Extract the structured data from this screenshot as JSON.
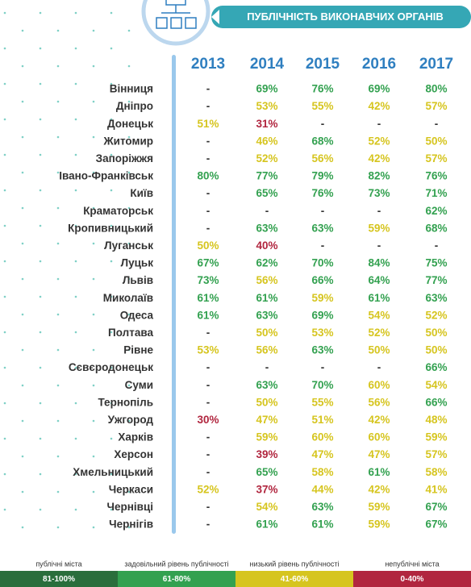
{
  "title": "ПУБЛІЧНІСТЬ ВИКОНАВЧИХ ОРГАНІВ",
  "table": {
    "headers": [
      "2013",
      "2014",
      "2015",
      "2016",
      "2017"
    ],
    "rows": [
      [
        "Вінниця",
        "-",
        "69%",
        "76%",
        "69%",
        "80%"
      ],
      [
        "Дніпро",
        "-",
        "53%",
        "55%",
        "42%",
        "57%"
      ],
      [
        "Донецьк",
        "51%",
        "31%",
        "-",
        "-",
        "-"
      ],
      [
        "Житомир",
        "-",
        "46%",
        "68%",
        "52%",
        "50%"
      ],
      [
        "Запоріжжя",
        "-",
        "52%",
        "56%",
        "42%",
        "57%"
      ],
      [
        "Івано-Франківськ",
        "80%",
        "77%",
        "79%",
        "82%",
        "76%"
      ],
      [
        "Київ",
        "-",
        "65%",
        "76%",
        "73%",
        "71%"
      ],
      [
        "Краматорськ",
        "-",
        "-",
        "-",
        "-",
        "62%"
      ],
      [
        "Кропивницький",
        "-",
        "63%",
        "63%",
        "59%",
        "68%"
      ],
      [
        "Луганськ",
        "50%",
        "40%",
        "-",
        "-",
        "-"
      ],
      [
        "Луцьк",
        "67%",
        "62%",
        "70%",
        "84%",
        "75%"
      ],
      [
        "Львів",
        "73%",
        "56%",
        "66%",
        "64%",
        "77%"
      ],
      [
        "Миколаїв",
        "61%",
        "61%",
        "59%",
        "61%",
        "63%"
      ],
      [
        "Одеса",
        "61%",
        "63%",
        "69%",
        "54%",
        "52%"
      ],
      [
        "Полтава",
        "-",
        "50%",
        "53%",
        "52%",
        "50%"
      ],
      [
        "Рівне",
        "53%",
        "56%",
        "63%",
        "50%",
        "50%"
      ],
      [
        "Сєвєродонецьк",
        "-",
        "-",
        "-",
        "-",
        "66%"
      ],
      [
        "Суми",
        "-",
        "63%",
        "70%",
        "60%",
        "54%"
      ],
      [
        "Тернопіль",
        "-",
        "50%",
        "55%",
        "56%",
        "66%"
      ],
      [
        "Ужгород",
        "30%",
        "47%",
        "51%",
        "42%",
        "48%"
      ],
      [
        "Харків",
        "-",
        "59%",
        "60%",
        "60%",
        "59%"
      ],
      [
        "Херсон",
        "-",
        "39%",
        "47%",
        "47%",
        "57%"
      ],
      [
        "Хмельницький",
        "-",
        "65%",
        "58%",
        "61%",
        "58%"
      ],
      [
        "Черкаси",
        "52%",
        "37%",
        "44%",
        "42%",
        "41%"
      ],
      [
        "Чернівці",
        "-",
        "54%",
        "63%",
        "59%",
        "67%"
      ],
      [
        "Чернігів",
        "-",
        "61%",
        "61%",
        "59%",
        "67%"
      ]
    ]
  },
  "legend": {
    "items": [
      {
        "label": "публічні міста",
        "range": "81-100%",
        "color": "#2a6e3c"
      },
      {
        "label": "задовільний рівень публічності",
        "range": "61-80%",
        "color": "#33a150"
      },
      {
        "label": "низький рівень публічності",
        "range": "41-60%",
        "color": "#d6c51f"
      },
      {
        "label": "непублічні міста",
        "range": "0-40%",
        "color": "#b1263f"
      }
    ]
  }
}
